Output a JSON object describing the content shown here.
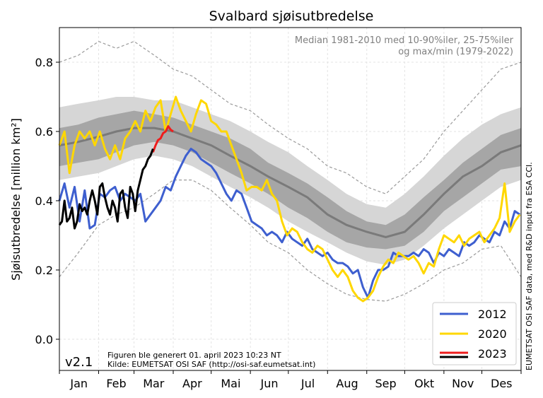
{
  "chart_data": {
    "type": "line",
    "title": "Svalbard sjøisutbredelse",
    "ylabel": "Sjøisutbredelse [million km²]",
    "xlabel": "",
    "x_tick_labels": [
      "Jan",
      "Feb",
      "Mar",
      "Apr",
      "Mai",
      "Jun",
      "Jul",
      "Aug",
      "Sep",
      "Okt",
      "Nov",
      "Des"
    ],
    "y_ticks": [
      0.0,
      0.2,
      0.4,
      0.6,
      0.8
    ],
    "y_tick_labels": [
      "0.0",
      "0.2",
      "0.4",
      "0.6",
      "0.8"
    ],
    "ylim": [
      -0.09,
      0.9
    ],
    "xlim": [
      0,
      365
    ],
    "grid": true,
    "annotation": [
      "Median 1981-2010 med 10-90%iler, 25-75%iler",
      "og max/min (1979-2022)"
    ],
    "version_label": "v2.1",
    "footer": [
      "Figuren ble generert 01. april 2023 10:23 NT",
      "Kilde: EUMETSAT OSI SAF (http://osi-saf.eumetsat.int)"
    ],
    "side_credit": "EUMETSAT OSI SAF data, med R&D input fra ESA CCI.",
    "legend_position": "bottom-right",
    "climatology": {
      "day": [
        0,
        15,
        31,
        45,
        59,
        75,
        90,
        105,
        120,
        135,
        151,
        165,
        181,
        196,
        212,
        227,
        243,
        258,
        273,
        288,
        304,
        319,
        334,
        349,
        365
      ],
      "median": [
        0.56,
        0.57,
        0.585,
        0.6,
        0.61,
        0.61,
        0.6,
        0.58,
        0.56,
        0.53,
        0.5,
        0.47,
        0.44,
        0.41,
        0.36,
        0.33,
        0.31,
        0.295,
        0.31,
        0.36,
        0.42,
        0.47,
        0.5,
        0.54,
        0.56
      ],
      "p25": [
        0.5,
        0.51,
        0.52,
        0.54,
        0.56,
        0.57,
        0.56,
        0.54,
        0.51,
        0.48,
        0.45,
        0.42,
        0.38,
        0.35,
        0.31,
        0.28,
        0.265,
        0.26,
        0.27,
        0.31,
        0.37,
        0.41,
        0.45,
        0.49,
        0.5
      ],
      "p75": [
        0.61,
        0.62,
        0.64,
        0.65,
        0.66,
        0.65,
        0.64,
        0.62,
        0.6,
        0.58,
        0.55,
        0.51,
        0.48,
        0.45,
        0.41,
        0.37,
        0.34,
        0.33,
        0.36,
        0.41,
        0.46,
        0.51,
        0.55,
        0.59,
        0.61
      ],
      "p10": [
        0.46,
        0.47,
        0.48,
        0.5,
        0.52,
        0.53,
        0.52,
        0.5,
        0.47,
        0.44,
        0.41,
        0.38,
        0.34,
        0.31,
        0.28,
        0.25,
        0.225,
        0.215,
        0.23,
        0.27,
        0.32,
        0.36,
        0.4,
        0.44,
        0.46
      ],
      "p90": [
        0.67,
        0.68,
        0.69,
        0.7,
        0.7,
        0.69,
        0.69,
        0.67,
        0.65,
        0.63,
        0.6,
        0.57,
        0.54,
        0.5,
        0.46,
        0.42,
        0.39,
        0.38,
        0.42,
        0.47,
        0.53,
        0.58,
        0.62,
        0.65,
        0.67
      ],
      "max": [
        0.8,
        0.82,
        0.86,
        0.84,
        0.86,
        0.82,
        0.78,
        0.76,
        0.72,
        0.68,
        0.66,
        0.62,
        0.58,
        0.55,
        0.5,
        0.48,
        0.44,
        0.42,
        0.47,
        0.52,
        0.6,
        0.66,
        0.72,
        0.78,
        0.8
      ],
      "min": [
        0.18,
        0.25,
        0.33,
        0.36,
        0.38,
        0.42,
        0.46,
        0.46,
        0.43,
        0.38,
        0.33,
        0.28,
        0.25,
        0.2,
        0.16,
        0.13,
        0.115,
        0.11,
        0.13,
        0.16,
        0.2,
        0.22,
        0.26,
        0.27,
        0.18
      ]
    },
    "series": [
      {
        "name": "2012",
        "color": "#3e5fcf",
        "x": [
          0,
          4,
          8,
          12,
          16,
          20,
          24,
          28,
          32,
          36,
          40,
          44,
          48,
          52,
          56,
          60,
          64,
          68,
          72,
          76,
          80,
          84,
          88,
          92,
          96,
          100,
          104,
          108,
          112,
          116,
          120,
          124,
          128,
          132,
          136,
          140,
          144,
          148,
          152,
          156,
          160,
          164,
          168,
          172,
          176,
          180,
          184,
          188,
          192,
          196,
          200,
          204,
          208,
          212,
          216,
          220,
          224,
          228,
          232,
          236,
          240,
          244,
          248,
          252,
          256,
          260,
          264,
          268,
          272,
          276,
          280,
          284,
          288,
          292,
          296,
          300,
          304,
          308,
          312,
          316,
          320,
          324,
          328,
          332,
          336,
          340,
          344,
          348,
          352,
          356,
          360,
          364
        ],
        "values": [
          0.4,
          0.45,
          0.38,
          0.44,
          0.34,
          0.43,
          0.32,
          0.33,
          0.42,
          0.41,
          0.43,
          0.44,
          0.4,
          0.42,
          0.41,
          0.4,
          0.42,
          0.34,
          0.36,
          0.38,
          0.4,
          0.44,
          0.43,
          0.47,
          0.5,
          0.53,
          0.55,
          0.54,
          0.52,
          0.51,
          0.5,
          0.48,
          0.45,
          0.42,
          0.4,
          0.43,
          0.42,
          0.38,
          0.34,
          0.33,
          0.32,
          0.3,
          0.31,
          0.3,
          0.28,
          0.31,
          0.29,
          0.28,
          0.27,
          0.29,
          0.26,
          0.25,
          0.24,
          0.25,
          0.23,
          0.22,
          0.22,
          0.21,
          0.19,
          0.2,
          0.15,
          0.12,
          0.17,
          0.2,
          0.2,
          0.21,
          0.25,
          0.24,
          0.24,
          0.24,
          0.25,
          0.24,
          0.26,
          0.25,
          0.22,
          0.25,
          0.24,
          0.26,
          0.25,
          0.24,
          0.28,
          0.27,
          0.28,
          0.3,
          0.29,
          0.28,
          0.31,
          0.3,
          0.34,
          0.32,
          0.37,
          0.36
        ]
      },
      {
        "name": "2020",
        "color": "#ffd700",
        "x": [
          0,
          4,
          8,
          12,
          16,
          20,
          24,
          28,
          32,
          36,
          40,
          44,
          48,
          52,
          56,
          60,
          64,
          68,
          72,
          76,
          80,
          84,
          88,
          92,
          96,
          100,
          104,
          108,
          112,
          116,
          120,
          124,
          128,
          132,
          136,
          140,
          144,
          148,
          152,
          156,
          160,
          164,
          168,
          172,
          176,
          180,
          184,
          188,
          192,
          196,
          200,
          204,
          208,
          212,
          216,
          220,
          224,
          228,
          232,
          236,
          240,
          244,
          248,
          252,
          256,
          260,
          264,
          268,
          272,
          276,
          280,
          284,
          288,
          292,
          296,
          300,
          304,
          308,
          312,
          316,
          320,
          324,
          328,
          332,
          336,
          340,
          344,
          348,
          352,
          356,
          360,
          364
        ],
        "values": [
          0.56,
          0.6,
          0.48,
          0.56,
          0.6,
          0.58,
          0.6,
          0.56,
          0.6,
          0.55,
          0.52,
          0.56,
          0.52,
          0.58,
          0.6,
          0.63,
          0.6,
          0.66,
          0.63,
          0.67,
          0.69,
          0.6,
          0.65,
          0.7,
          0.66,
          0.63,
          0.6,
          0.65,
          0.69,
          0.68,
          0.63,
          0.62,
          0.6,
          0.6,
          0.56,
          0.52,
          0.48,
          0.43,
          0.44,
          0.44,
          0.43,
          0.46,
          0.42,
          0.4,
          0.34,
          0.3,
          0.32,
          0.31,
          0.28,
          0.26,
          0.25,
          0.27,
          0.26,
          0.23,
          0.2,
          0.18,
          0.2,
          0.18,
          0.14,
          0.12,
          0.11,
          0.12,
          0.14,
          0.18,
          0.21,
          0.23,
          0.22,
          0.25,
          0.24,
          0.23,
          0.24,
          0.22,
          0.19,
          0.22,
          0.21,
          0.26,
          0.3,
          0.29,
          0.28,
          0.3,
          0.27,
          0.29,
          0.3,
          0.31,
          0.28,
          0.3,
          0.32,
          0.35,
          0.45,
          0.31,
          0.34,
          0.36
        ]
      },
      {
        "name": "2023",
        "color": "#ee1c1c",
        "x": [
          74,
          76,
          78,
          80,
          82,
          84,
          86,
          88,
          90
        ],
        "values": [
          0.54,
          0.56,
          0.575,
          0.58,
          0.595,
          0.6,
          0.615,
          0.605,
          0.6
        ]
      },
      {
        "name": "2023-black",
        "color": "#000000",
        "x": [
          0,
          2,
          4,
          6,
          8,
          10,
          12,
          14,
          16,
          18,
          20,
          22,
          24,
          26,
          28,
          30,
          32,
          34,
          36,
          38,
          40,
          42,
          44,
          46,
          48,
          50,
          52,
          54,
          56,
          58,
          60,
          62,
          64,
          66,
          68,
          70,
          72,
          74
        ],
        "values": [
          0.33,
          0.34,
          0.4,
          0.34,
          0.35,
          0.38,
          0.32,
          0.34,
          0.39,
          0.37,
          0.38,
          0.36,
          0.4,
          0.43,
          0.4,
          0.36,
          0.44,
          0.45,
          0.41,
          0.38,
          0.36,
          0.4,
          0.38,
          0.34,
          0.42,
          0.43,
          0.38,
          0.35,
          0.44,
          0.42,
          0.37,
          0.43,
          0.46,
          0.49,
          0.5,
          0.52,
          0.53,
          0.55
        ]
      }
    ]
  },
  "legend": [
    {
      "label": "2012",
      "color": "#3e5fcf"
    },
    {
      "label": "2020",
      "color": "#ffd700"
    },
    {
      "label": "2023",
      "color": "#ee1c1c"
    }
  ]
}
